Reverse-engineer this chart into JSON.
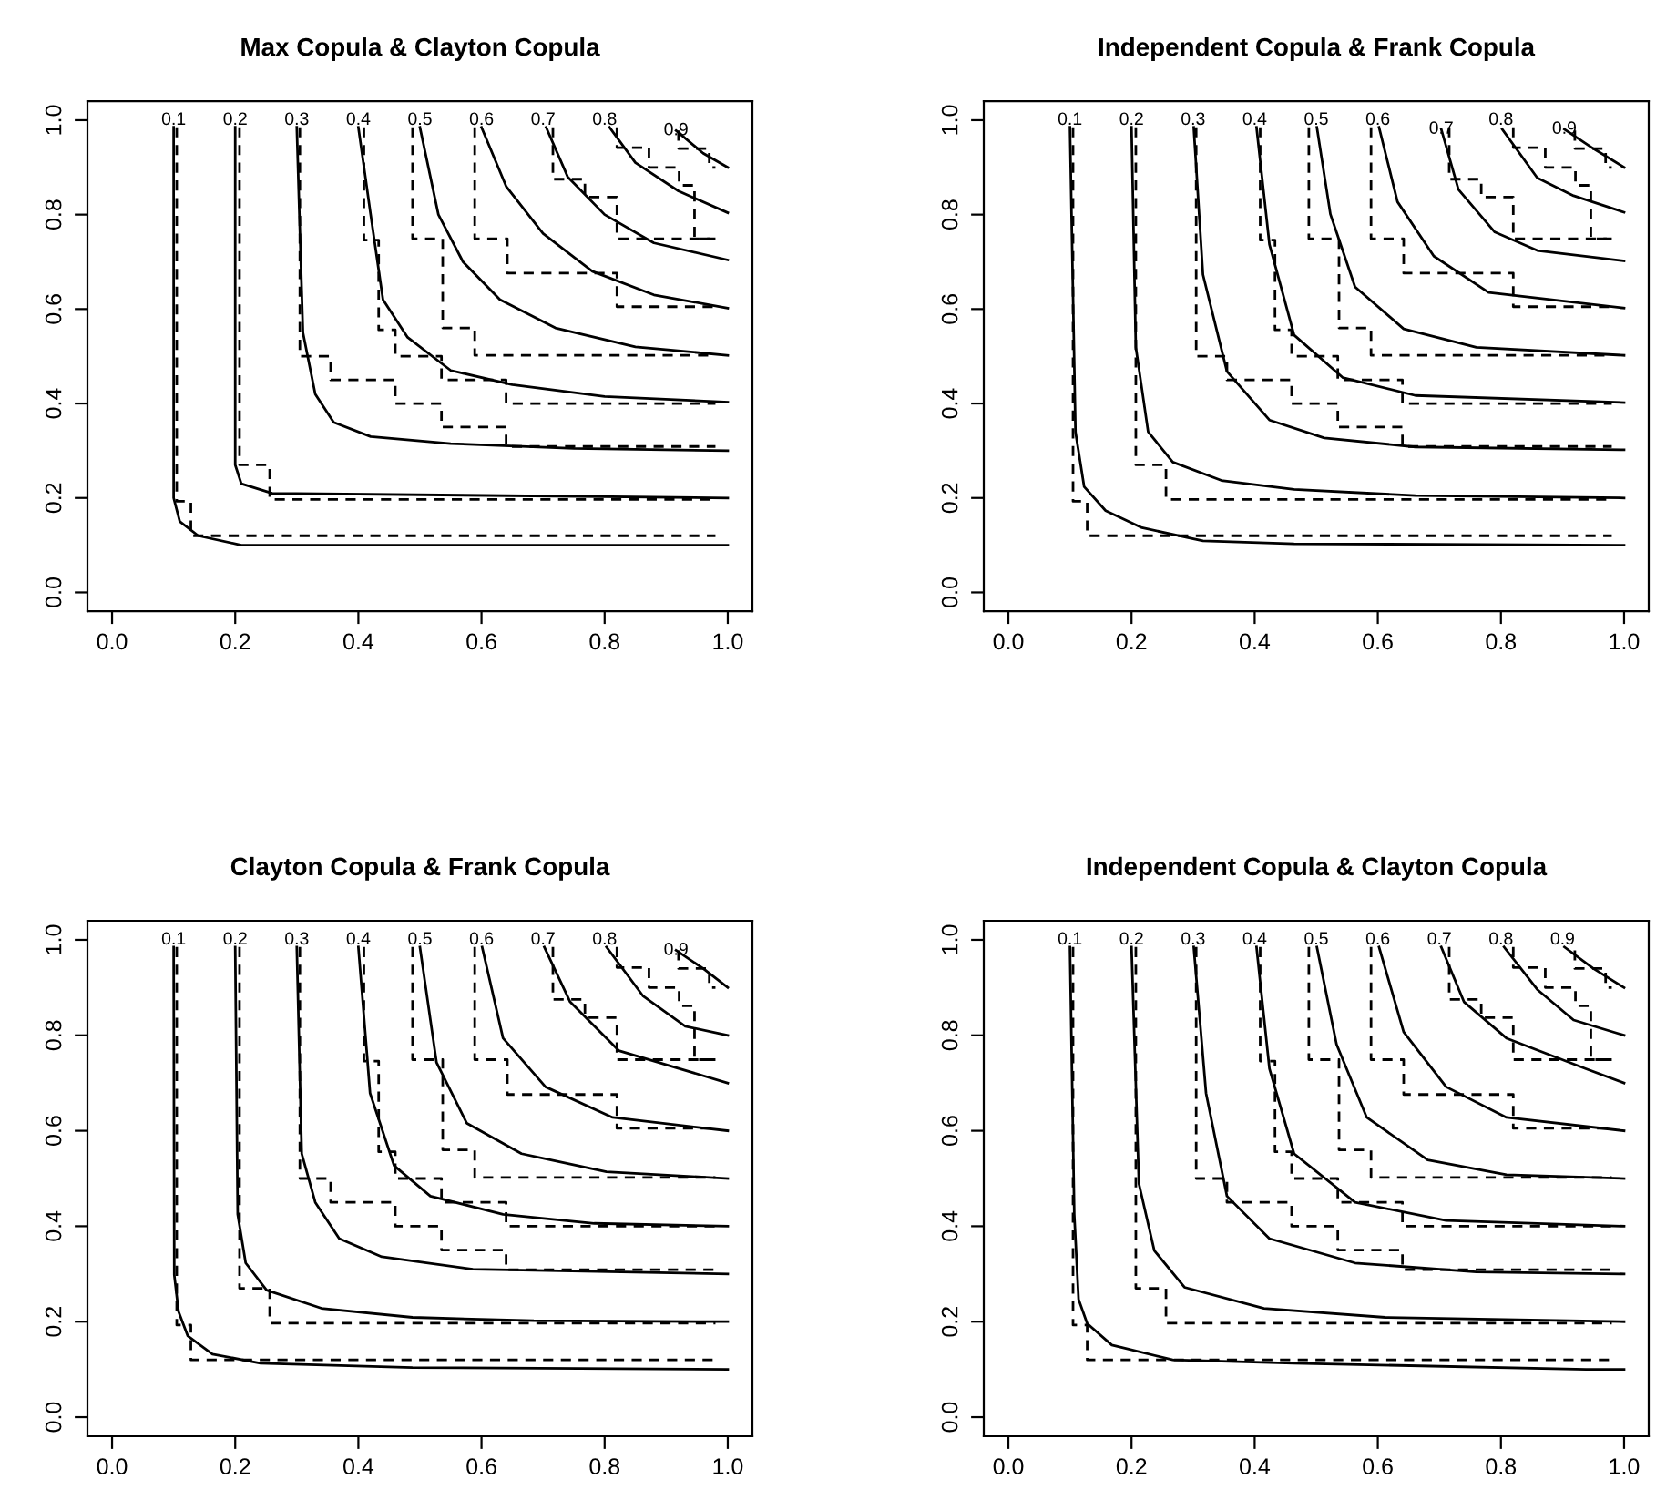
{
  "chart_data": [
    {
      "type": "line",
      "title": "Max Copula & Clayton Copula",
      "xlim": [
        -0.04,
        1.04
      ],
      "ylim": [
        -0.04,
        1.04
      ],
      "xticks": [
        {
          "value": 0,
          "label": "0.0"
        },
        {
          "value": 0.2,
          "label": "0.2"
        },
        {
          "value": 0.4,
          "label": "0.4"
        },
        {
          "value": 0.6,
          "label": "0.6"
        },
        {
          "value": 0.8,
          "label": "0.8"
        },
        {
          "value": 1,
          "label": "1.0"
        }
      ],
      "yticks": [
        {
          "value": 0,
          "label": "0.0"
        },
        {
          "value": 0.2,
          "label": "0.2"
        },
        {
          "value": 0.4,
          "label": "0.4"
        },
        {
          "value": 0.6,
          "label": "0.6"
        },
        {
          "value": 0.8,
          "label": "0.8"
        },
        {
          "value": 1,
          "label": "1.0"
        }
      ],
      "annotations": [
        {
          "text": "0.1",
          "x": 0.1,
          "y": 1.0
        },
        {
          "text": "0.2",
          "x": 0.2,
          "y": 1.0
        },
        {
          "text": "0.3",
          "x": 0.3,
          "y": 1.0
        },
        {
          "text": "0.4",
          "x": 0.4,
          "y": 1.0
        },
        {
          "text": "0.5",
          "x": 0.5,
          "y": 1.0
        },
        {
          "text": "0.6",
          "x": 0.6,
          "y": 1.0
        },
        {
          "text": "0.7",
          "x": 0.7,
          "y": 1.0
        },
        {
          "text": "0.8",
          "x": 0.8,
          "y": 1.0
        },
        {
          "text": "0.9",
          "x": 0.916,
          "y": 0.978
        }
      ],
      "series": [
        {
          "color": "#000000",
          "line_style": "solid",
          "x": [
            0.1,
            0.1,
            0.11,
            0.14,
            0.21,
            1
          ],
          "values": [
            0.985,
            0.2,
            0.15,
            0.12,
            0.1,
            0.1
          ]
        },
        {
          "color": "#000000",
          "line_style": "solid",
          "x": [
            0.2,
            0.2,
            0.21,
            0.26,
            1
          ],
          "values": [
            0.985,
            0.27,
            0.23,
            0.21,
            0.2
          ]
        },
        {
          "color": "#000000",
          "line_style": "solid",
          "x": [
            0.3,
            0.31,
            0.33,
            0.36,
            0.42,
            0.55,
            0.75,
            1
          ],
          "values": [
            0.985,
            0.55,
            0.42,
            0.36,
            0.33,
            0.315,
            0.305,
            0.3
          ]
        },
        {
          "color": "#000000",
          "line_style": "solid",
          "x": [
            0.4,
            0.42,
            0.44,
            0.48,
            0.55,
            0.65,
            0.8,
            1
          ],
          "values": [
            0.985,
            0.8,
            0.62,
            0.54,
            0.47,
            0.44,
            0.415,
            0.403
          ]
        },
        {
          "color": "#000000",
          "line_style": "solid",
          "x": [
            0.5,
            0.53,
            0.57,
            0.63,
            0.72,
            0.85,
            1
          ],
          "values": [
            0.985,
            0.8,
            0.7,
            0.62,
            0.56,
            0.52,
            0.502
          ]
        },
        {
          "color": "#000000",
          "line_style": "solid",
          "x": [
            0.6,
            0.64,
            0.7,
            0.78,
            0.88,
            1
          ],
          "values": [
            0.985,
            0.86,
            0.76,
            0.68,
            0.63,
            0.602
          ]
        },
        {
          "color": "#000000",
          "line_style": "solid",
          "x": [
            0.705,
            0.74,
            0.8,
            0.88,
            1
          ],
          "values": [
            0.985,
            0.88,
            0.8,
            0.74,
            0.704
          ]
        },
        {
          "color": "#000000",
          "line_style": "solid",
          "x": [
            0.808,
            0.85,
            0.92,
            1
          ],
          "values": [
            0.985,
            0.91,
            0.85,
            0.804
          ]
        },
        {
          "color": "#000000",
          "line_style": "solid",
          "x": [
            0.916,
            0.96,
            1
          ],
          "values": [
            0.978,
            0.93,
            0.9
          ]
        },
        {
          "color": "#000000",
          "line_style": "dashed",
          "x": [
            0.105,
            0.105,
            0.128,
            0.128,
            0.98
          ],
          "values": [
            0.985,
            0.193,
            0.193,
            0.12,
            0.12
          ]
        },
        {
          "color": "#000000",
          "line_style": "dashed",
          "x": [
            0.207,
            0.207,
            0.256,
            0.256,
            0.98
          ],
          "values": [
            0.985,
            0.27,
            0.27,
            0.197,
            0.197
          ]
        },
        {
          "color": "#000000",
          "line_style": "dashed",
          "x": [
            0.305,
            0.305,
            0.355,
            0.355,
            0.46,
            0.46,
            0.535,
            0.535,
            0.64,
            0.64,
            0.98
          ],
          "values": [
            0.985,
            0.5,
            0.5,
            0.45,
            0.45,
            0.4,
            0.4,
            0.35,
            0.35,
            0.309,
            0.309
          ]
        },
        {
          "color": "#000000",
          "line_style": "dashed",
          "x": [
            0.409,
            0.409,
            0.433,
            0.433,
            0.46,
            0.46,
            0.535,
            0.535,
            0.64,
            0.64,
            0.98
          ],
          "values": [
            0.985,
            0.746,
            0.746,
            0.556,
            0.556,
            0.5,
            0.5,
            0.45,
            0.45,
            0.4,
            0.4
          ]
        },
        {
          "color": "#000000",
          "line_style": "dashed",
          "x": [
            0.488,
            0.488,
            0.537,
            0.537,
            0.589,
            0.589,
            0.98
          ],
          "values": [
            0.985,
            0.749,
            0.749,
            0.56,
            0.56,
            0.502,
            0.502
          ]
        },
        {
          "color": "#000000",
          "line_style": "dashed",
          "x": [
            0.589,
            0.589,
            0.642,
            0.642,
            0.82,
            0.82,
            0.98
          ],
          "values": [
            0.985,
            0.749,
            0.749,
            0.676,
            0.676,
            0.605,
            0.605
          ]
        },
        {
          "color": "#000000",
          "line_style": "dashed",
          "x": [
            0.716,
            0.716,
            0.768,
            0.768,
            0.82,
            0.82,
            0.98
          ],
          "values": [
            0.985,
            0.875,
            0.875,
            0.837,
            0.837,
            0.749,
            0.749
          ]
        },
        {
          "color": "#000000",
          "line_style": "dashed",
          "x": [
            0.82,
            0.82,
            0.872,
            0.872,
            0.921,
            0.921,
            0.946,
            0.946,
            0.98
          ],
          "values": [
            0.985,
            0.942,
            0.942,
            0.9,
            0.9,
            0.862,
            0.862,
            0.749,
            0.749
          ]
        },
        {
          "color": "#000000",
          "line_style": "dashed",
          "x": [
            0.92,
            0.92,
            0.97,
            0.97,
            0.98
          ],
          "values": [
            0.978,
            0.94,
            0.94,
            0.9,
            0.9
          ]
        }
      ]
    },
    {
      "type": "line",
      "title": "Independent Copula & Frank Copula",
      "xlim": [
        -0.04,
        1.04
      ],
      "ylim": [
        -0.04,
        1.04
      ],
      "xticks": [
        {
          "value": 0,
          "label": "0.0"
        },
        {
          "value": 0.2,
          "label": "0.2"
        },
        {
          "value": 0.4,
          "label": "0.4"
        },
        {
          "value": 0.6,
          "label": "0.6"
        },
        {
          "value": 0.8,
          "label": "0.8"
        },
        {
          "value": 1,
          "label": "1.0"
        }
      ],
      "yticks": [
        {
          "value": 0,
          "label": "0.0"
        },
        {
          "value": 0.2,
          "label": "0.2"
        },
        {
          "value": 0.4,
          "label": "0.4"
        },
        {
          "value": 0.6,
          "label": "0.6"
        },
        {
          "value": 0.8,
          "label": "0.8"
        },
        {
          "value": 1,
          "label": "1.0"
        }
      ],
      "annotations": [
        {
          "text": "0.1",
          "x": 0.1,
          "y": 1.0
        },
        {
          "text": "0.2",
          "x": 0.2,
          "y": 1.0
        },
        {
          "text": "0.3",
          "x": 0.3,
          "y": 1.0
        },
        {
          "text": "0.4",
          "x": 0.4,
          "y": 1.0
        },
        {
          "text": "0.5",
          "x": 0.5,
          "y": 1.0
        },
        {
          "text": "0.6",
          "x": 0.6,
          "y": 1.0
        },
        {
          "text": "0.7",
          "x": 0.703,
          "y": 0.981
        },
        {
          "text": "0.8",
          "x": 0.8,
          "y": 1.0
        },
        {
          "text": "0.9",
          "x": 0.903,
          "y": 0.981
        }
      ],
      "series": [
        {
          "color": "#000000",
          "line_style": "solid",
          "x": [
            0.1,
            0.109,
            0.123,
            0.158,
            0.217,
            0.316,
            0.464,
            1
          ],
          "values": [
            0.985,
            0.34,
            0.224,
            0.173,
            0.137,
            0.109,
            0.103,
            0.1
          ]
        },
        {
          "color": "#000000",
          "line_style": "solid",
          "x": [
            0.2,
            0.207,
            0.227,
            0.267,
            0.346,
            0.464,
            0.661,
            1
          ],
          "values": [
            0.985,
            0.519,
            0.34,
            0.276,
            0.237,
            0.218,
            0.205,
            0.2
          ]
        },
        {
          "color": "#000000",
          "line_style": "solid",
          "x": [
            0.301,
            0.316,
            0.355,
            0.424,
            0.513,
            0.661,
            1
          ],
          "values": [
            0.985,
            0.673,
            0.468,
            0.365,
            0.327,
            0.308,
            0.302
          ]
        },
        {
          "color": "#000000",
          "line_style": "solid",
          "x": [
            0.403,
            0.424,
            0.464,
            0.543,
            0.661,
            1
          ],
          "values": [
            0.985,
            0.737,
            0.545,
            0.455,
            0.417,
            0.402
          ]
        },
        {
          "color": "#000000",
          "line_style": "solid",
          "x": [
            0.501,
            0.523,
            0.563,
            0.642,
            0.76,
            1
          ],
          "values": [
            0.985,
            0.801,
            0.647,
            0.558,
            0.519,
            0.502
          ]
        },
        {
          "color": "#000000",
          "line_style": "solid",
          "x": [
            0.602,
            0.632,
            0.691,
            0.78,
            1
          ],
          "values": [
            0.985,
            0.827,
            0.712,
            0.635,
            0.602
          ]
        },
        {
          "color": "#000000",
          "line_style": "solid",
          "x": [
            0.703,
            0.731,
            0.79,
            0.859,
            1
          ],
          "values": [
            0.981,
            0.853,
            0.763,
            0.724,
            0.702
          ]
        },
        {
          "color": "#000000",
          "line_style": "solid",
          "x": [
            0.802,
            0.859,
            0.918,
            1
          ],
          "values": [
            0.981,
            0.878,
            0.84,
            0.805
          ]
        },
        {
          "color": "#000000",
          "line_style": "solid",
          "x": [
            0.903,
            0.95,
            1
          ],
          "values": [
            0.981,
            0.94,
            0.9
          ]
        },
        {
          "color": "#000000",
          "line_style": "dashed",
          "x": [
            0.105,
            0.105,
            0.128,
            0.128,
            0.98
          ],
          "values": [
            0.985,
            0.193,
            0.193,
            0.12,
            0.12
          ]
        },
        {
          "color": "#000000",
          "line_style": "dashed",
          "x": [
            0.207,
            0.207,
            0.256,
            0.256,
            0.98
          ],
          "values": [
            0.985,
            0.27,
            0.27,
            0.197,
            0.197
          ]
        },
        {
          "color": "#000000",
          "line_style": "dashed",
          "x": [
            0.305,
            0.305,
            0.355,
            0.355,
            0.46,
            0.46,
            0.535,
            0.535,
            0.64,
            0.64,
            0.98
          ],
          "values": [
            0.985,
            0.5,
            0.5,
            0.45,
            0.45,
            0.4,
            0.4,
            0.35,
            0.35,
            0.309,
            0.309
          ]
        },
        {
          "color": "#000000",
          "line_style": "dashed",
          "x": [
            0.409,
            0.409,
            0.433,
            0.433,
            0.46,
            0.46,
            0.535,
            0.535,
            0.64,
            0.64,
            0.98
          ],
          "values": [
            0.985,
            0.746,
            0.746,
            0.556,
            0.556,
            0.5,
            0.5,
            0.45,
            0.45,
            0.4,
            0.4
          ]
        },
        {
          "color": "#000000",
          "line_style": "dashed",
          "x": [
            0.488,
            0.488,
            0.537,
            0.537,
            0.589,
            0.589,
            0.98
          ],
          "values": [
            0.985,
            0.749,
            0.749,
            0.56,
            0.56,
            0.502,
            0.502
          ]
        },
        {
          "color": "#000000",
          "line_style": "dashed",
          "x": [
            0.589,
            0.589,
            0.642,
            0.642,
            0.82,
            0.82,
            0.98
          ],
          "values": [
            0.985,
            0.749,
            0.749,
            0.676,
            0.676,
            0.605,
            0.605
          ]
        },
        {
          "color": "#000000",
          "line_style": "dashed",
          "x": [
            0.716,
            0.716,
            0.768,
            0.768,
            0.82,
            0.82,
            0.98
          ],
          "values": [
            0.985,
            0.875,
            0.875,
            0.837,
            0.837,
            0.749,
            0.749
          ]
        },
        {
          "color": "#000000",
          "line_style": "dashed",
          "x": [
            0.82,
            0.82,
            0.872,
            0.872,
            0.921,
            0.921,
            0.946,
            0.946,
            0.98
          ],
          "values": [
            0.985,
            0.942,
            0.942,
            0.9,
            0.9,
            0.862,
            0.862,
            0.749,
            0.749
          ]
        },
        {
          "color": "#000000",
          "line_style": "dashed",
          "x": [
            0.92,
            0.92,
            0.97,
            0.97,
            0.98
          ],
          "values": [
            0.978,
            0.94,
            0.94,
            0.9,
            0.9
          ]
        }
      ]
    },
    {
      "type": "line",
      "title": "Clayton Copula & Frank Copula",
      "xlim": [
        -0.04,
        1.04
      ],
      "ylim": [
        -0.04,
        1.04
      ],
      "xticks": [
        {
          "value": 0,
          "label": "0.0"
        },
        {
          "value": 0.2,
          "label": "0.2"
        },
        {
          "value": 0.4,
          "label": "0.4"
        },
        {
          "value": 0.6,
          "label": "0.6"
        },
        {
          "value": 0.8,
          "label": "0.8"
        },
        {
          "value": 1,
          "label": "1.0"
        }
      ],
      "yticks": [
        {
          "value": 0,
          "label": "0.0"
        },
        {
          "value": 0.2,
          "label": "0.2"
        },
        {
          "value": 0.4,
          "label": "0.4"
        },
        {
          "value": 0.6,
          "label": "0.6"
        },
        {
          "value": 0.8,
          "label": "0.8"
        },
        {
          "value": 1,
          "label": "1.0"
        }
      ],
      "annotations": [
        {
          "text": "0.1",
          "x": 0.1,
          "y": 1.0
        },
        {
          "text": "0.2",
          "x": 0.2,
          "y": 1.0
        },
        {
          "text": "0.3",
          "x": 0.3,
          "y": 1.0
        },
        {
          "text": "0.4",
          "x": 0.4,
          "y": 1.0
        },
        {
          "text": "0.5",
          "x": 0.5,
          "y": 1.0
        },
        {
          "text": "0.6",
          "x": 0.6,
          "y": 1.0
        },
        {
          "text": "0.7",
          "x": 0.7,
          "y": 1.0
        },
        {
          "text": "0.8",
          "x": 0.8,
          "y": 1.0
        },
        {
          "text": "0.9",
          "x": 0.916,
          "y": 0.978
        }
      ],
      "series": [
        {
          "color": "#000000",
          "line_style": "solid",
          "x": [
            0.1,
            0.101,
            0.108,
            0.123,
            0.163,
            0.241,
            0.488,
            1
          ],
          "values": [
            0.985,
            0.298,
            0.221,
            0.17,
            0.132,
            0.113,
            0.104,
            0.1
          ]
        },
        {
          "color": "#000000",
          "line_style": "solid",
          "x": [
            0.2,
            0.204,
            0.217,
            0.251,
            0.34,
            0.488,
            0.685,
            1
          ],
          "values": [
            0.985,
            0.425,
            0.323,
            0.266,
            0.228,
            0.209,
            0.202,
            0.2
          ]
        },
        {
          "color": "#000000",
          "line_style": "solid",
          "x": [
            0.3,
            0.308,
            0.33,
            0.369,
            0.438,
            0.586,
            1
          ],
          "values": [
            0.985,
            0.552,
            0.45,
            0.374,
            0.336,
            0.31,
            0.3
          ]
        },
        {
          "color": "#000000",
          "line_style": "solid",
          "x": [
            0.4,
            0.419,
            0.458,
            0.517,
            0.635,
            0.783,
            1
          ],
          "values": [
            0.985,
            0.679,
            0.527,
            0.463,
            0.425,
            0.406,
            0.4
          ]
        },
        {
          "color": "#000000",
          "line_style": "solid",
          "x": [
            0.5,
            0.527,
            0.576,
            0.665,
            0.803,
            1
          ],
          "values": [
            0.985,
            0.743,
            0.616,
            0.552,
            0.514,
            0.5
          ]
        },
        {
          "color": "#000000",
          "line_style": "solid",
          "x": [
            0.601,
            0.635,
            0.704,
            0.813,
            1
          ],
          "values": [
            0.985,
            0.794,
            0.692,
            0.628,
            0.6
          ]
        },
        {
          "color": "#000000",
          "line_style": "solid",
          "x": [
            0.702,
            0.744,
            0.823,
            1
          ],
          "values": [
            0.985,
            0.87,
            0.768,
            0.7
          ]
        },
        {
          "color": "#000000",
          "line_style": "solid",
          "x": [
            0.803,
            0.862,
            0.931,
            1
          ],
          "values": [
            0.985,
            0.883,
            0.819,
            0.8
          ]
        },
        {
          "color": "#000000",
          "line_style": "solid",
          "x": [
            0.916,
            0.96,
            1
          ],
          "values": [
            0.978,
            0.94,
            0.9
          ]
        },
        {
          "color": "#000000",
          "line_style": "dashed",
          "x": [
            0.105,
            0.105,
            0.128,
            0.128,
            0.98
          ],
          "values": [
            0.985,
            0.193,
            0.193,
            0.12,
            0.12
          ]
        },
        {
          "color": "#000000",
          "line_style": "dashed",
          "x": [
            0.207,
            0.207,
            0.256,
            0.256,
            0.98
          ],
          "values": [
            0.985,
            0.27,
            0.27,
            0.197,
            0.197
          ]
        },
        {
          "color": "#000000",
          "line_style": "dashed",
          "x": [
            0.305,
            0.305,
            0.355,
            0.355,
            0.46,
            0.46,
            0.535,
            0.535,
            0.64,
            0.64,
            0.98
          ],
          "values": [
            0.985,
            0.5,
            0.5,
            0.45,
            0.45,
            0.4,
            0.4,
            0.35,
            0.35,
            0.309,
            0.309
          ]
        },
        {
          "color": "#000000",
          "line_style": "dashed",
          "x": [
            0.409,
            0.409,
            0.433,
            0.433,
            0.46,
            0.46,
            0.535,
            0.535,
            0.64,
            0.64,
            0.98
          ],
          "values": [
            0.985,
            0.746,
            0.746,
            0.556,
            0.556,
            0.5,
            0.5,
            0.45,
            0.45,
            0.4,
            0.4
          ]
        },
        {
          "color": "#000000",
          "line_style": "dashed",
          "x": [
            0.488,
            0.488,
            0.537,
            0.537,
            0.589,
            0.589,
            0.98
          ],
          "values": [
            0.985,
            0.749,
            0.749,
            0.56,
            0.56,
            0.502,
            0.502
          ]
        },
        {
          "color": "#000000",
          "line_style": "dashed",
          "x": [
            0.589,
            0.589,
            0.642,
            0.642,
            0.82,
            0.82,
            0.98
          ],
          "values": [
            0.985,
            0.749,
            0.749,
            0.676,
            0.676,
            0.605,
            0.605
          ]
        },
        {
          "color": "#000000",
          "line_style": "dashed",
          "x": [
            0.716,
            0.716,
            0.768,
            0.768,
            0.82,
            0.82,
            0.98
          ],
          "values": [
            0.985,
            0.875,
            0.875,
            0.837,
            0.837,
            0.749,
            0.749
          ]
        },
        {
          "color": "#000000",
          "line_style": "dashed",
          "x": [
            0.82,
            0.82,
            0.872,
            0.872,
            0.921,
            0.921,
            0.946,
            0.946,
            0.98
          ],
          "values": [
            0.985,
            0.942,
            0.942,
            0.9,
            0.9,
            0.862,
            0.862,
            0.749,
            0.749
          ]
        },
        {
          "color": "#000000",
          "line_style": "dashed",
          "x": [
            0.92,
            0.92,
            0.97,
            0.97,
            0.98
          ],
          "values": [
            0.978,
            0.94,
            0.94,
            0.9,
            0.9
          ]
        }
      ]
    },
    {
      "type": "line",
      "title": "Independent Copula & Clayton Copula",
      "xlim": [
        -0.04,
        1.04
      ],
      "ylim": [
        -0.04,
        1.04
      ],
      "xticks": [
        {
          "value": 0,
          "label": "0.0"
        },
        {
          "value": 0.2,
          "label": "0.2"
        },
        {
          "value": 0.4,
          "label": "0.4"
        },
        {
          "value": 0.6,
          "label": "0.6"
        },
        {
          "value": 0.8,
          "label": "0.8"
        },
        {
          "value": 1,
          "label": "1.0"
        }
      ],
      "yticks": [
        {
          "value": 0,
          "label": "0.0"
        },
        {
          "value": 0.2,
          "label": "0.2"
        },
        {
          "value": 0.4,
          "label": "0.4"
        },
        {
          "value": 0.6,
          "label": "0.6"
        },
        {
          "value": 0.8,
          "label": "0.8"
        },
        {
          "value": 1,
          "label": "1.0"
        }
      ],
      "annotations": [
        {
          "text": "0.1",
          "x": 0.1,
          "y": 1.0
        },
        {
          "text": "0.2",
          "x": 0.2,
          "y": 1.0
        },
        {
          "text": "0.3",
          "x": 0.3,
          "y": 1.0
        },
        {
          "text": "0.4",
          "x": 0.4,
          "y": 1.0
        },
        {
          "text": "0.5",
          "x": 0.5,
          "y": 1.0
        },
        {
          "text": "0.6",
          "x": 0.6,
          "y": 1.0
        },
        {
          "text": "0.7",
          "x": 0.7,
          "y": 1.0
        },
        {
          "text": "0.8",
          "x": 0.8,
          "y": 1.0
        },
        {
          "text": "0.9",
          "x": 0.9,
          "y": 1.0
        }
      ],
      "series": [
        {
          "color": "#000000",
          "line_style": "solid",
          "x": [
            0.1,
            0.107,
            0.114,
            0.128,
            0.168,
            0.267,
            0.464,
            0.938,
            1
          ],
          "values": [
            0.985,
            0.425,
            0.247,
            0.196,
            0.151,
            0.12,
            0.113,
            0.1,
            0.1
          ]
        },
        {
          "color": "#000000",
          "line_style": "solid",
          "x": [
            0.2,
            0.212,
            0.237,
            0.286,
            0.415,
            0.612,
            1
          ],
          "values": [
            0.985,
            0.489,
            0.349,
            0.272,
            0.228,
            0.209,
            0.2
          ]
        },
        {
          "color": "#000000",
          "line_style": "solid",
          "x": [
            0.301,
            0.321,
            0.355,
            0.424,
            0.563,
            0.76,
            1
          ],
          "values": [
            0.985,
            0.679,
            0.463,
            0.374,
            0.323,
            0.304,
            0.3
          ]
        },
        {
          "color": "#000000",
          "line_style": "solid",
          "x": [
            0.403,
            0.424,
            0.464,
            0.563,
            0.711,
            1
          ],
          "values": [
            0.985,
            0.73,
            0.552,
            0.45,
            0.412,
            0.4
          ]
        },
        {
          "color": "#000000",
          "line_style": "solid",
          "x": [
            0.501,
            0.533,
            0.582,
            0.681,
            0.809,
            1
          ],
          "values": [
            0.985,
            0.781,
            0.628,
            0.539,
            0.508,
            0.5
          ]
        },
        {
          "color": "#000000",
          "line_style": "solid",
          "x": [
            0.602,
            0.642,
            0.711,
            0.809,
            1
          ],
          "values": [
            0.985,
            0.807,
            0.692,
            0.628,
            0.6
          ]
        },
        {
          "color": "#000000",
          "line_style": "solid",
          "x": [
            0.703,
            0.74,
            0.809,
            0.938,
            1
          ],
          "values": [
            0.985,
            0.87,
            0.794,
            0.73,
            0.7
          ]
        },
        {
          "color": "#000000",
          "line_style": "solid",
          "x": [
            0.805,
            0.859,
            0.918,
            1
          ],
          "values": [
            0.985,
            0.896,
            0.832,
            0.8
          ]
        },
        {
          "color": "#000000",
          "line_style": "solid",
          "x": [
            0.903,
            0.95,
            1
          ],
          "values": [
            0.985,
            0.94,
            0.9
          ]
        },
        {
          "color": "#000000",
          "line_style": "dashed",
          "x": [
            0.105,
            0.105,
            0.128,
            0.128,
            0.98
          ],
          "values": [
            0.985,
            0.193,
            0.193,
            0.12,
            0.12
          ]
        },
        {
          "color": "#000000",
          "line_style": "dashed",
          "x": [
            0.207,
            0.207,
            0.256,
            0.256,
            0.98
          ],
          "values": [
            0.985,
            0.27,
            0.27,
            0.197,
            0.197
          ]
        },
        {
          "color": "#000000",
          "line_style": "dashed",
          "x": [
            0.305,
            0.305,
            0.355,
            0.355,
            0.46,
            0.46,
            0.535,
            0.535,
            0.64,
            0.64,
            0.98
          ],
          "values": [
            0.985,
            0.5,
            0.5,
            0.45,
            0.45,
            0.4,
            0.4,
            0.35,
            0.35,
            0.309,
            0.309
          ]
        },
        {
          "color": "#000000",
          "line_style": "dashed",
          "x": [
            0.409,
            0.409,
            0.433,
            0.433,
            0.46,
            0.46,
            0.535,
            0.535,
            0.64,
            0.64,
            0.98
          ],
          "values": [
            0.985,
            0.746,
            0.746,
            0.556,
            0.556,
            0.5,
            0.5,
            0.45,
            0.45,
            0.4,
            0.4
          ]
        },
        {
          "color": "#000000",
          "line_style": "dashed",
          "x": [
            0.488,
            0.488,
            0.537,
            0.537,
            0.589,
            0.589,
            0.98
          ],
          "values": [
            0.985,
            0.749,
            0.749,
            0.56,
            0.56,
            0.502,
            0.502
          ]
        },
        {
          "color": "#000000",
          "line_style": "dashed",
          "x": [
            0.589,
            0.589,
            0.642,
            0.642,
            0.82,
            0.82,
            0.98
          ],
          "values": [
            0.985,
            0.749,
            0.749,
            0.676,
            0.676,
            0.605,
            0.605
          ]
        },
        {
          "color": "#000000",
          "line_style": "dashed",
          "x": [
            0.716,
            0.716,
            0.768,
            0.768,
            0.82,
            0.82,
            0.98
          ],
          "values": [
            0.985,
            0.875,
            0.875,
            0.837,
            0.837,
            0.749,
            0.749
          ]
        },
        {
          "color": "#000000",
          "line_style": "dashed",
          "x": [
            0.82,
            0.82,
            0.872,
            0.872,
            0.921,
            0.921,
            0.946,
            0.946,
            0.98
          ],
          "values": [
            0.985,
            0.942,
            0.942,
            0.9,
            0.9,
            0.862,
            0.862,
            0.749,
            0.749
          ]
        },
        {
          "color": "#000000",
          "line_style": "dashed",
          "x": [
            0.92,
            0.92,
            0.97,
            0.97,
            0.98
          ],
          "values": [
            0.978,
            0.94,
            0.94,
            0.9,
            0.9
          ]
        }
      ]
    }
  ]
}
